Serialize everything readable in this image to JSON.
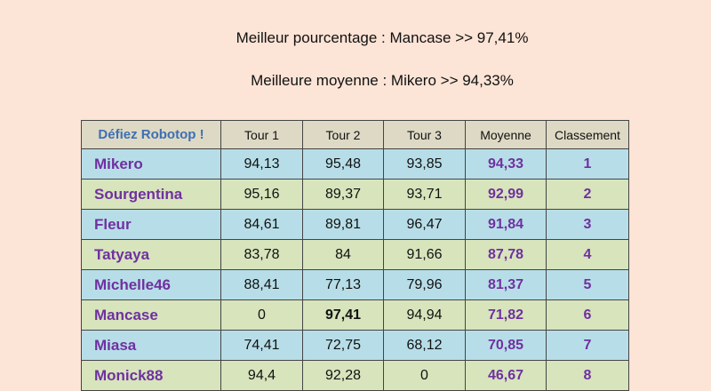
{
  "headlines": {
    "best_percentage": "Meilleur pourcentage : Mancase >> 97,41%",
    "best_average": "Meilleure moyenne : Mikero >> 94,33%"
  },
  "table": {
    "title": "Défiez Robotop !",
    "columns": [
      "Tour 1",
      "Tour 2",
      "Tour 3",
      "Moyenne",
      "Classement"
    ],
    "rows": [
      {
        "name": "Mikero",
        "t1": "94,13",
        "t2": "95,48",
        "t3": "93,85",
        "avg": "94,33",
        "rank": "1"
      },
      {
        "name": "Sourgentina",
        "t1": "95,16",
        "t2": "89,37",
        "t3": "93,71",
        "avg": "92,99",
        "rank": "2"
      },
      {
        "name": "Fleur",
        "t1": "84,61",
        "t2": "89,81",
        "t3": "96,47",
        "avg": "91,84",
        "rank": "3"
      },
      {
        "name": "Tatyaya",
        "t1": "83,78",
        "t2": "84",
        "t3": "91,66",
        "avg": "87,78",
        "rank": "4"
      },
      {
        "name": "Michelle46",
        "t1": "88,41",
        "t2": "77,13",
        "t3": "79,96",
        "avg": "81,37",
        "rank": "5"
      },
      {
        "name": "Mancase",
        "t1": "0",
        "t2": "97,41",
        "t3": "94,94",
        "avg": "71,82",
        "rank": "6"
      },
      {
        "name": "Miasa",
        "t1": "74,41",
        "t2": "72,75",
        "t3": "68,12",
        "avg": "70,85",
        "rank": "7"
      },
      {
        "name": "Monick88",
        "t1": "94,4",
        "t2": "92,28",
        "t3": "0",
        "avg": "46,67",
        "rank": "8"
      }
    ]
  },
  "colors": {
    "background": "#fce4d6",
    "header_row": "#ddd9c4",
    "row_blue": "#b7dee8",
    "row_green": "#d7e4bc",
    "name_purple": "#7030a0",
    "title_blue": "#3d6fb5"
  }
}
